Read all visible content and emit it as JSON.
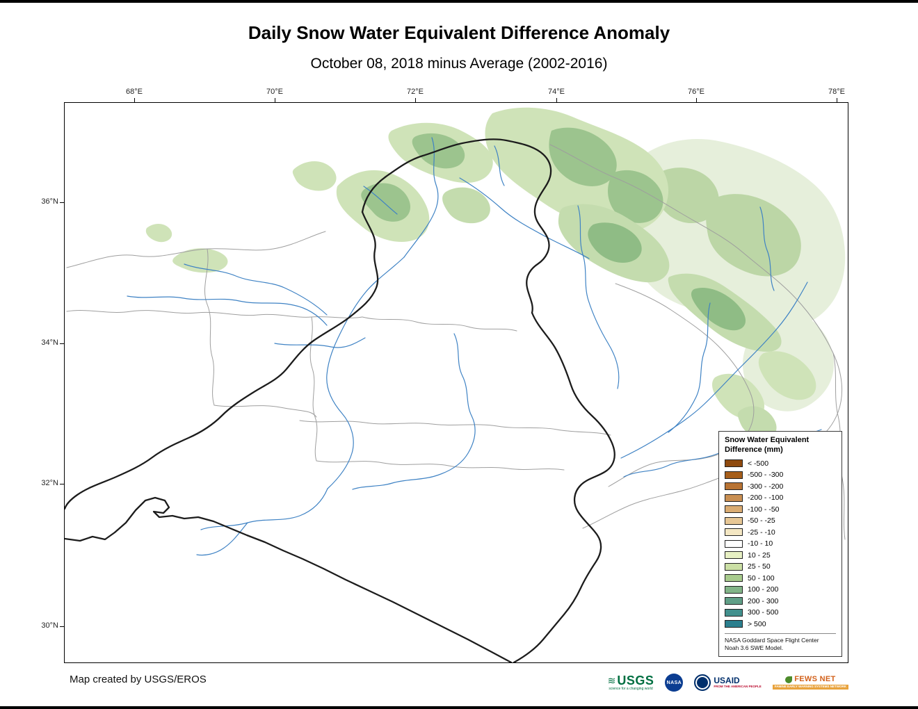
{
  "title": "Daily Snow Water Equivalent Difference Anomaly",
  "subtitle": "October 08, 2018 minus Average (2002-2016)",
  "map": {
    "x_ticks": [
      "68°E",
      "70°E",
      "72°E",
      "74°E",
      "76°E",
      "78°E"
    ],
    "y_ticks": [
      "36°N",
      "34°N",
      "32°N",
      "30°N"
    ]
  },
  "colors": {
    "river": "#3E82C4",
    "watershed_boundary": "#9E9E9E",
    "basin_boundary": "#1C1C1C"
  },
  "legend": {
    "title_line1": "Snow Water Equivalent",
    "title_line2": "Difference (mm)",
    "entries": [
      {
        "label": "< -500",
        "color": "#8F4A0E"
      },
      {
        "label": "-500 - -300",
        "color": "#A65E1A"
      },
      {
        "label": "-300 - -200",
        "color": "#B87333"
      },
      {
        "label": "-200 - -100",
        "color": "#C98F52"
      },
      {
        "label": "-100 - -50",
        "color": "#DAAC72"
      },
      {
        "label": "-50 - -25",
        "color": "#E7C795"
      },
      {
        "label": "-25 - -10",
        "color": "#F4E7C3"
      },
      {
        "label": "-10 - 10",
        "color": "#FFFFFF"
      },
      {
        "label": "10 - 25",
        "color": "#E7F0C3"
      },
      {
        "label": "25 - 50",
        "color": "#CBDFA5"
      },
      {
        "label": "50 - 100",
        "color": "#A8CB8D"
      },
      {
        "label": "100 - 200",
        "color": "#82B488"
      },
      {
        "label": "200 - 300",
        "color": "#609F87"
      },
      {
        "label": "300 - 500",
        "color": "#42908D"
      },
      {
        "label": "> 500",
        "color": "#2B7F8E"
      }
    ],
    "source_line1": "NASA Goddard Space Flight Center",
    "source_line2": "Noah 3.6 SWE Model."
  },
  "credit": "Map created by USGS/EROS",
  "logos": {
    "usgs": {
      "label": "USGS",
      "tagline": "science for a changing world"
    },
    "nasa": {
      "label": "NASA"
    },
    "usaid": {
      "label": "USAID",
      "tagline": "FROM THE AMERICAN PEOPLE"
    },
    "fews": {
      "label": "FEWS NET",
      "tagline": "FAMINE EARLY WARNING SYSTEMS NETWORK"
    }
  }
}
